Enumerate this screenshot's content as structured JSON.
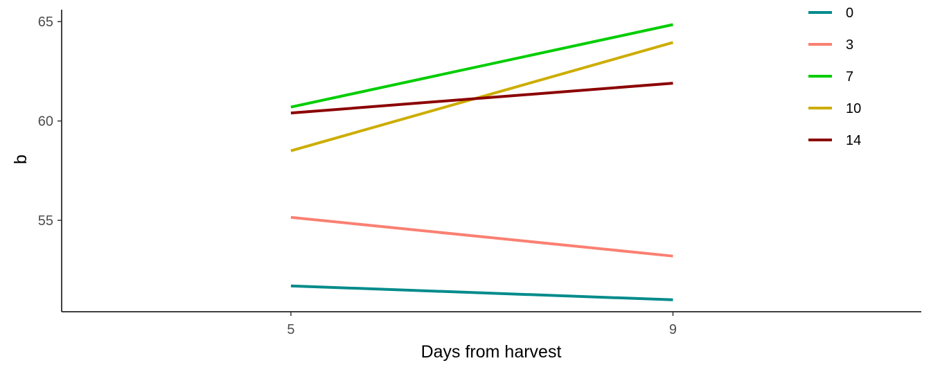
{
  "chart_data": {
    "type": "line",
    "title": "",
    "xlabel": "Days from harvest",
    "ylabel": "b",
    "x": [
      5,
      9
    ],
    "x_ticks": [
      "5",
      "9"
    ],
    "xlim": [
      2.6,
      11.6
    ],
    "y_ticks": [
      "55",
      "60",
      "65"
    ],
    "ylim": [
      50.4,
      65.6
    ],
    "grid": false,
    "legend_position": "top-right",
    "series": [
      {
        "name": "0",
        "color": "#008B8B",
        "values": [
          51.7,
          51.0
        ]
      },
      {
        "name": "3",
        "color": "#FA8072",
        "values": [
          55.15,
          53.2
        ]
      },
      {
        "name": "7",
        "color": "#00CD00",
        "values": [
          60.7,
          64.85
        ]
      },
      {
        "name": "10",
        "color": "#CDAD00",
        "values": [
          58.5,
          63.95
        ]
      },
      {
        "name": "14",
        "color": "#8B0000",
        "values": [
          60.4,
          61.9
        ]
      }
    ]
  }
}
